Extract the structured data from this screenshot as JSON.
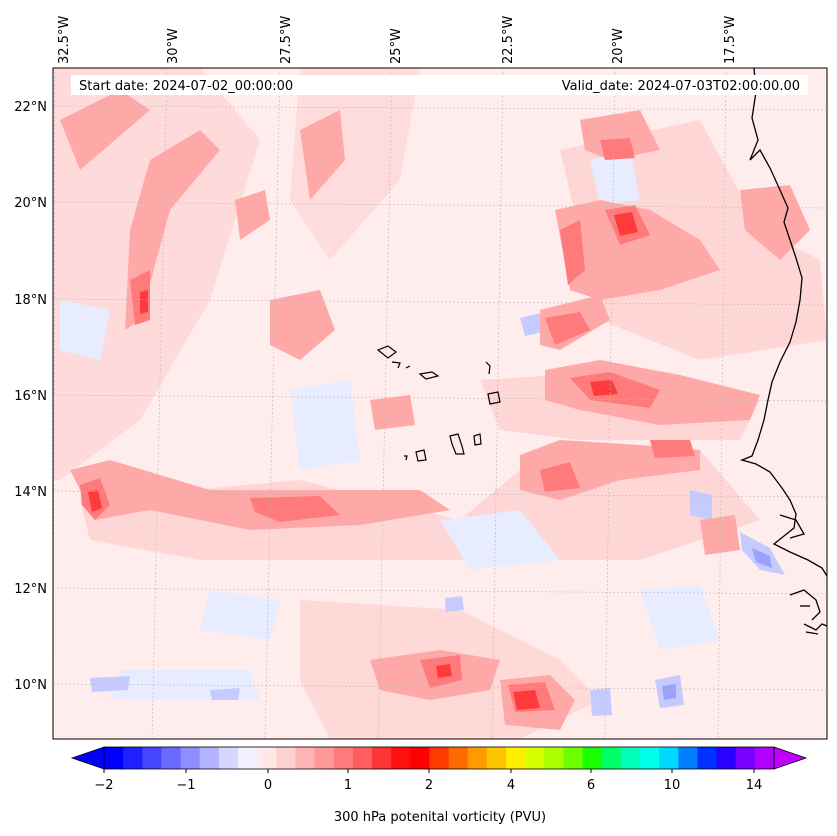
{
  "map": {
    "start_date": "Start date: 2024-07-02_00:00:00",
    "valid_date": "Valid_date: 2024-07-03T02:00:00.00",
    "lon_labels": [
      "32.5°W",
      "30°W",
      "27.5°W",
      "25°W",
      "22.5°W",
      "20°W",
      "17.5°W"
    ],
    "lat_labels": [
      "22°N",
      "20°N",
      "18°N",
      "16°N",
      "14°N",
      "12°N",
      "10°N"
    ],
    "lon_values": [
      -32.5,
      -30,
      -27.5,
      -25,
      -22.5,
      -20,
      -17.5
    ],
    "lat_values": [
      22,
      20,
      18,
      16,
      14,
      12,
      10
    ],
    "extent": {
      "lon_min": -32.5,
      "lon_max": -15.0,
      "lat_min": 8.9,
      "lat_max": 22.8
    }
  },
  "colorbar": {
    "title": "300 hPa potenital vorticity (PVU)",
    "tick_labels": [
      "−2",
      "−1",
      "0",
      "1",
      "2",
      "4",
      "6",
      "10",
      "14"
    ],
    "colors": [
      "#0000ff",
      "#2020ff",
      "#4646ff",
      "#6a6aff",
      "#8e8eff",
      "#b2b2ff",
      "#d6d6ff",
      "#f0f0ff",
      "#ffe8e8",
      "#ffd0d0",
      "#ffb4b4",
      "#ff9898",
      "#ff7a7a",
      "#ff5e5e",
      "#ff3434",
      "#ff1010",
      "#ff0000",
      "#ff3a00",
      "#ff6a00",
      "#ff9a00",
      "#ffc400",
      "#ffee00",
      "#d8ff00",
      "#a8ff00",
      "#6cff00",
      "#18ff00",
      "#00ff66",
      "#00ffbb",
      "#00ffe8",
      "#00d8ff",
      "#0080ff",
      "#0030ff",
      "#2a00ff",
      "#7a00ff",
      "#b000ff"
    ],
    "under_color": "#0000ff",
    "over_color": "#c000ff"
  },
  "legend_pv_colors": {
    "very_high": "#ff3a3a",
    "high": "#ff7a7a",
    "mid": "#ffa8a8",
    "low": "#ffd6d6",
    "near_zero": "#ffeaea",
    "neg_light": "#e8ecff",
    "neg_mid": "#c6cbff",
    "neg_strong": "#9aa2ff"
  }
}
